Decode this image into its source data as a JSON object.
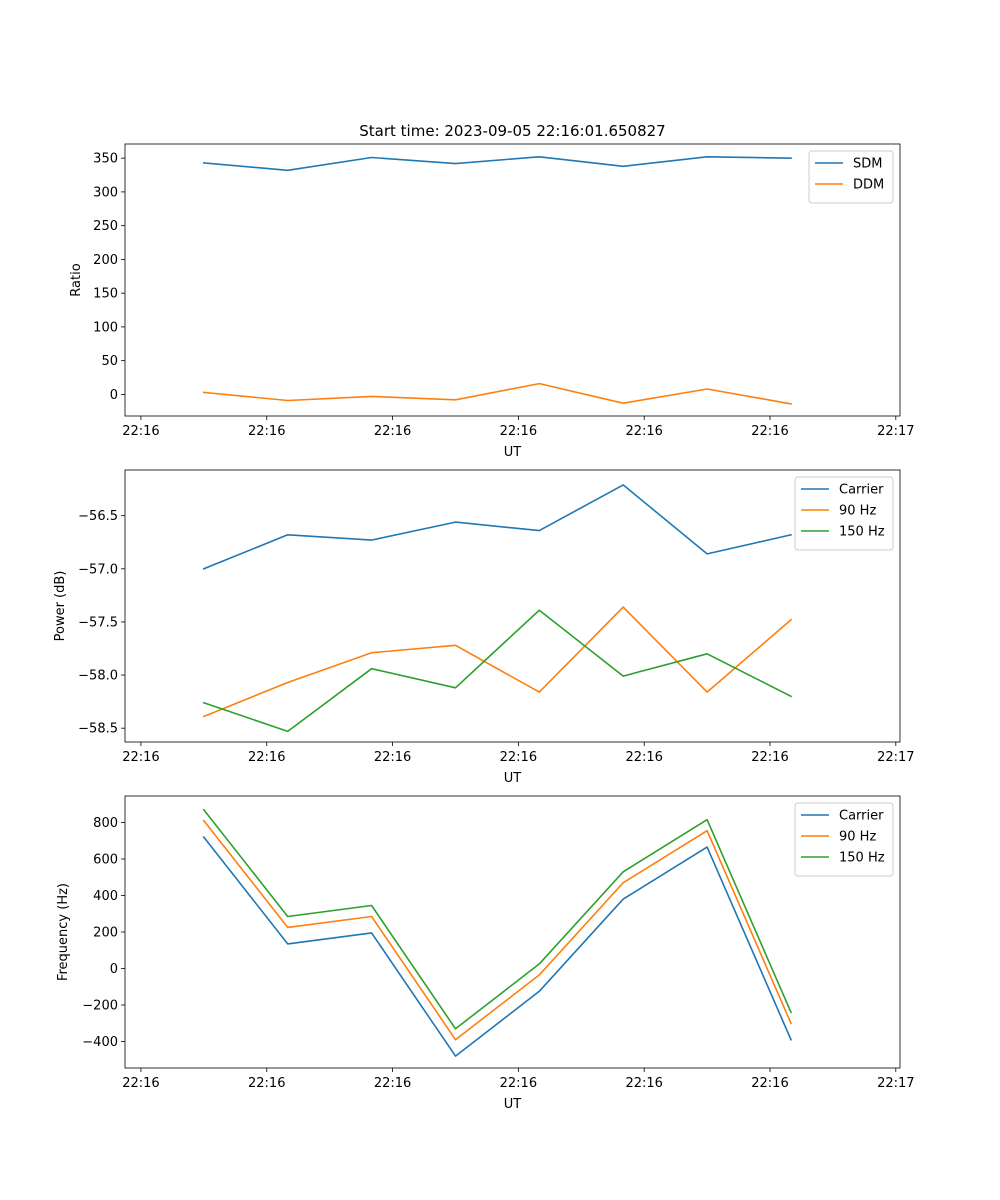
{
  "figure_title": "Start time: 2023-09-05 22:16:01.650827",
  "colors": {
    "blue": "#1f77b4",
    "orange": "#ff7f0e",
    "green": "#2ca02c"
  },
  "chart_data": [
    {
      "type": "line",
      "title": "Start time: 2023-09-05 22:16:01.650827",
      "xlabel": "UT",
      "ylabel": "Ratio",
      "x": [
        1,
        2,
        3,
        4,
        5,
        6,
        7,
        8
      ],
      "xlim": [
        0.06,
        9.3
      ],
      "x_ticks": [
        0.25,
        1.75,
        3.25,
        4.75,
        6.25,
        7.75,
        9.25
      ],
      "x_tick_labels": [
        "22:16",
        "22:16",
        "22:16",
        "22:16",
        "22:16",
        "22:16",
        "22:17"
      ],
      "ylim": [
        -32,
        371
      ],
      "y_ticks": [
        0,
        50,
        100,
        150,
        200,
        250,
        300,
        350
      ],
      "y_tick_labels": [
        "0",
        "50",
        "100",
        "150",
        "200",
        "250",
        "300",
        "350"
      ],
      "legend_position": "top-right",
      "series": [
        {
          "name": "SDM",
          "color": "#1f77b4",
          "values": [
            343,
            332,
            351,
            342,
            352,
            338,
            352,
            350
          ]
        },
        {
          "name": "DDM",
          "color": "#ff7f0e",
          "values": [
            3,
            -9,
            -3,
            -8,
            16,
            -13,
            8,
            -14
          ]
        }
      ]
    },
    {
      "type": "line",
      "title": "",
      "xlabel": "UT",
      "ylabel": "Power (dB)",
      "x": [
        1,
        2,
        3,
        4,
        5,
        6,
        7,
        8
      ],
      "xlim": [
        0.06,
        9.3
      ],
      "x_ticks": [
        0.25,
        1.75,
        3.25,
        4.75,
        6.25,
        7.75,
        9.25
      ],
      "x_tick_labels": [
        "22:16",
        "22:16",
        "22:16",
        "22:16",
        "22:16",
        "22:16",
        "22:17"
      ],
      "ylim": [
        -58.63,
        -56.07
      ],
      "y_ticks": [
        -58.5,
        -58.0,
        -57.5,
        -57.0,
        -56.5
      ],
      "y_tick_labels": [
        "−58.5",
        "−58.0",
        "−57.5",
        "−57.0",
        "−56.5"
      ],
      "legend_position": "top-right",
      "series": [
        {
          "name": "Carrier",
          "color": "#1f77b4",
          "values": [
            -57.0,
            -56.68,
            -56.73,
            -56.56,
            -56.64,
            -56.21,
            -56.86,
            -56.68
          ]
        },
        {
          "name": "90 Hz",
          "color": "#ff7f0e",
          "values": [
            -58.39,
            -58.07,
            -57.79,
            -57.72,
            -58.16,
            -57.36,
            -58.16,
            -57.48
          ]
        },
        {
          "name": "150 Hz",
          "color": "#2ca02c",
          "values": [
            -58.26,
            -58.53,
            -57.94,
            -58.12,
            -57.39,
            -58.01,
            -57.8,
            -58.2
          ]
        }
      ]
    },
    {
      "type": "line",
      "title": "",
      "xlabel": "UT",
      "ylabel": "Frequency (Hz)",
      "x": [
        1,
        2,
        3,
        4,
        5,
        6,
        7,
        8
      ],
      "xlim": [
        0.06,
        9.3
      ],
      "x_ticks": [
        0.25,
        1.75,
        3.25,
        4.75,
        6.25,
        7.75,
        9.25
      ],
      "x_tick_labels": [
        "22:16",
        "22:16",
        "22:16",
        "22:16",
        "22:16",
        "22:16",
        "22:17"
      ],
      "ylim": [
        -545,
        945
      ],
      "y_ticks": [
        -400,
        -200,
        0,
        200,
        400,
        600,
        800
      ],
      "y_tick_labels": [
        "−400",
        "−200",
        "0",
        "200",
        "400",
        "600",
        "800"
      ],
      "legend_position": "top-right",
      "series": [
        {
          "name": "Carrier",
          "color": "#1f77b4",
          "values": [
            720,
            135,
            195,
            -480,
            -125,
            380,
            665,
            -390
          ]
        },
        {
          "name": "90 Hz",
          "color": "#ff7f0e",
          "values": [
            810,
            225,
            285,
            -390,
            -35,
            470,
            755,
            -300
          ]
        },
        {
          "name": "150 Hz",
          "color": "#2ca02c",
          "values": [
            870,
            285,
            345,
            -330,
            25,
            530,
            815,
            -240
          ]
        }
      ]
    }
  ]
}
